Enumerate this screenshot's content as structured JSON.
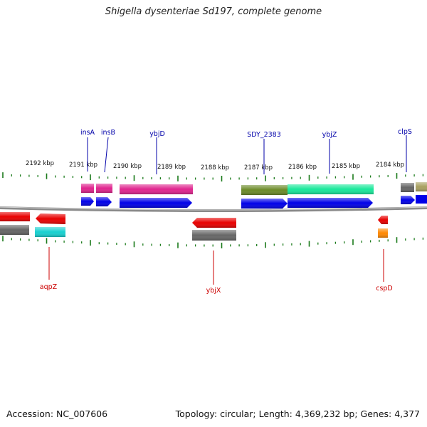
{
  "title": "Shigella dysenteriae Sd197, complete genome",
  "accession": "Accession: NC_007606",
  "summary": "Topology: circular; Length: 4,369,232 bp; Genes: 4,377",
  "colors": {
    "forward_label": "#0000aa",
    "reverse_label": "#cc0000",
    "tick": "#1a7a1a",
    "backbone": "#888888"
  },
  "scale_labels": [
    "2192 kbp",
    "2191 kbp",
    "2190 kbp",
    "2189 kbp",
    "2188 kbp",
    "2187 kbp",
    "2186 kbp",
    "2185 kbp",
    "2184 kbp"
  ],
  "genes": {
    "forward": [
      "insA",
      "insB",
      "ybjD",
      "SDY_2383",
      "ybjZ",
      "clpS"
    ],
    "reverse": [
      "aqpZ",
      "ybjX",
      "cspD"
    ]
  }
}
